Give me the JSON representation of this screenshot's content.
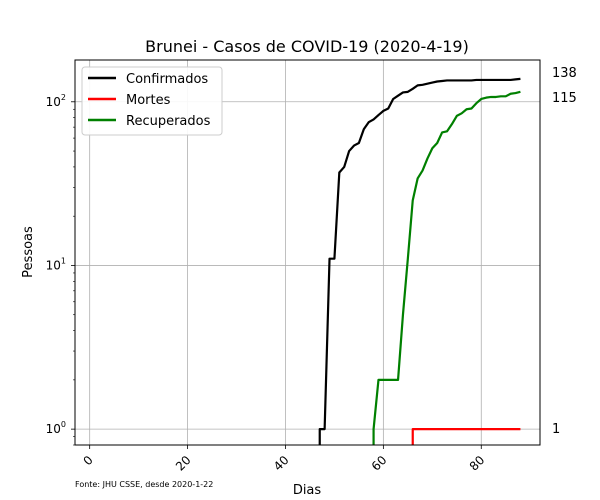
{
  "chart_data": {
    "type": "line",
    "title": "Brunei - Casos de COVID-19 (2020-4-19)",
    "xlabel": "Dias",
    "ylabel": "Pessoas",
    "yscale": "log",
    "xlim": [
      -3,
      92
    ],
    "ylim": [
      0.8,
      180
    ],
    "xticks": [
      0,
      20,
      40,
      60,
      80
    ],
    "yticks": [
      {
        "value": 1,
        "base": "10",
        "exp": "0"
      },
      {
        "value": 10,
        "base": "10",
        "exp": "1"
      },
      {
        "value": 100,
        "base": "10",
        "exp": "2"
      }
    ],
    "grid": true,
    "legend_position": "top-left",
    "footnote": "Fonte: JHU CSSE, desde 2020-1-22",
    "series": [
      {
        "name": "Confirmados",
        "color": "#000000",
        "end_label": "138",
        "points": [
          [
            47,
            0.5
          ],
          [
            47,
            1
          ],
          [
            48,
            1
          ],
          [
            49,
            11
          ],
          [
            50,
            11
          ],
          [
            51,
            37
          ],
          [
            52,
            40
          ],
          [
            53,
            50
          ],
          [
            54,
            54
          ],
          [
            55,
            56
          ],
          [
            56,
            68
          ],
          [
            57,
            75
          ],
          [
            58,
            78
          ],
          [
            59,
            83
          ],
          [
            60,
            88
          ],
          [
            61,
            91
          ],
          [
            62,
            104
          ],
          [
            63,
            109
          ],
          [
            64,
            114
          ],
          [
            65,
            115
          ],
          [
            66,
            120
          ],
          [
            67,
            126
          ],
          [
            68,
            127
          ],
          [
            69,
            129
          ],
          [
            70,
            131
          ],
          [
            71,
            133
          ],
          [
            72,
            134
          ],
          [
            73,
            135
          ],
          [
            74,
            135
          ],
          [
            75,
            135
          ],
          [
            76,
            135
          ],
          [
            77,
            135
          ],
          [
            78,
            135
          ],
          [
            79,
            136
          ],
          [
            80,
            136
          ],
          [
            81,
            136
          ],
          [
            82,
            136
          ],
          [
            83,
            136
          ],
          [
            84,
            136
          ],
          [
            85,
            136
          ],
          [
            86,
            136
          ],
          [
            87,
            137
          ],
          [
            88,
            138
          ]
        ]
      },
      {
        "name": "Mortes",
        "color": "#ff0000",
        "end_label": "1",
        "points": [
          [
            66,
            0.5
          ],
          [
            66,
            1
          ],
          [
            88,
            1
          ]
        ]
      },
      {
        "name": "Recuperados",
        "color": "#008000",
        "end_label": "115",
        "points": [
          [
            58,
            0.5
          ],
          [
            58,
            1
          ],
          [
            59,
            2
          ],
          [
            60,
            2
          ],
          [
            61,
            2
          ],
          [
            62,
            2
          ],
          [
            63,
            2
          ],
          [
            64,
            5
          ],
          [
            65,
            11
          ],
          [
            66,
            25
          ],
          [
            67,
            34
          ],
          [
            68,
            38
          ],
          [
            69,
            45
          ],
          [
            70,
            52
          ],
          [
            71,
            56
          ],
          [
            72,
            65
          ],
          [
            73,
            66
          ],
          [
            74,
            73
          ],
          [
            75,
            82
          ],
          [
            76,
            85
          ],
          [
            77,
            90
          ],
          [
            78,
            91
          ],
          [
            79,
            98
          ],
          [
            80,
            104
          ],
          [
            81,
            106
          ],
          [
            82,
            107
          ],
          [
            83,
            107
          ],
          [
            84,
            108
          ],
          [
            85,
            108
          ],
          [
            86,
            112
          ],
          [
            87,
            113
          ],
          [
            88,
            115
          ]
        ]
      }
    ]
  }
}
